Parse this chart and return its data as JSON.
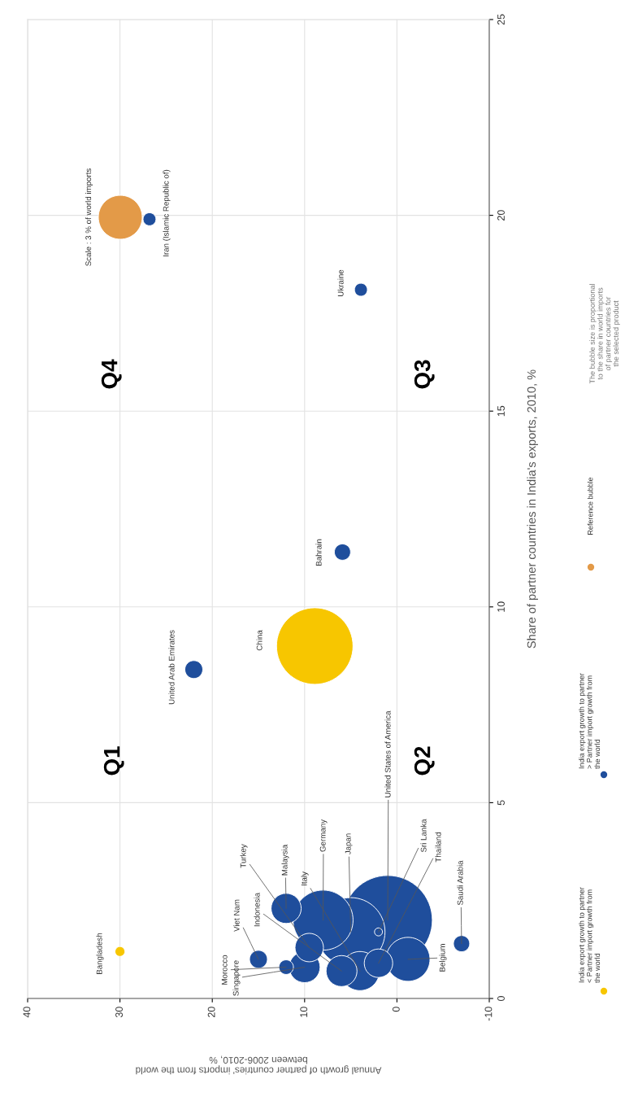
{
  "chart_data": {
    "type": "bubble",
    "xlabel": "Annual growth of partner countries' imports from the world\nbetween 2006-2010, %",
    "ylabel": "Share of partner countries in India's exports, 2010, %",
    "xlim": [
      40,
      -10
    ],
    "xticks": [
      40,
      30,
      20,
      10,
      0,
      -10
    ],
    "ylim": [
      0,
      25
    ],
    "yticks": [
      0,
      5,
      10,
      15,
      20,
      25
    ],
    "grid": true,
    "legend": "right",
    "marker": "circle",
    "size_legend": [
      {
        "value": 3,
        "label": "Scale : 3 % of world imports"
      }
    ],
    "series": [
      {
        "name": "India export growth to partner\n< Partner import growth from\nthe world",
        "color": "#f7c600",
        "x": [
          8.9,
          30
        ],
        "values": [
          9.0,
          1.2
        ],
        "sizes": [
          9.1,
          0.15
        ]
      },
      {
        "name": "India export growth to partner\n> Partner import growth from\nthe world",
        "color": "#1f4e9c",
        "x": [
          1.0,
          5.0,
          8.0,
          -1.2,
          4.0,
          6.0,
          10.0,
          12.0,
          9.5,
          2.0,
          22,
          15.0,
          5.9,
          -7.0,
          12.0,
          3.9,
          26.8,
          2.0
        ],
        "values": [
          2.0,
          1.7,
          2.0,
          1.0,
          0.7,
          0.7,
          0.8,
          2.3,
          1.3,
          0.9,
          8.4,
          1.0,
          11.4,
          1.4,
          0.8,
          18.1,
          19.9,
          1.7
        ],
        "sizes": [
          12.4,
          7.3,
          5.6,
          3.0,
          2.37,
          1.49,
          1.49,
          1.41,
          1.26,
          1.26,
          0.5,
          0.5,
          0.41,
          0.41,
          0.33,
          0.26,
          0.26,
          0.1
        ]
      }
    ],
    "annotations": [
      "Q1",
      "Q2",
      "Q3",
      "Q4",
      "The bubble size is proportional\nto the share in world imports\nof partner countries for\nthe selected product",
      "China",
      "Reference bubble",
      {
        "text": "Bangladesh",
        "x": 30,
        "y": 1.2
      },
      {
        "text": "United Arab Emirates",
        "x": 22,
        "y": 8.4
      },
      {
        "text": "Bahrain",
        "x": 5.9,
        "y": 11.4
      },
      {
        "text": "Ukraine",
        "x": 3.9,
        "y": 18.1
      },
      {
        "text": "Iran (Islamic Republic of)",
        "x": 26.8,
        "y": 19.9
      },
      {
        "text": "Morocco",
        "x": 12.0,
        "y": 0.8
      },
      {
        "text": "Singapore",
        "x": 10.0,
        "y": 0.8
      },
      {
        "text": "Viet Nam",
        "x": 15.0,
        "y": 1.0
      },
      {
        "text": "Turkey",
        "x": 9.5,
        "y": 1.3
      },
      {
        "text": "Indonesia",
        "x": 6.0,
        "y": 0.7
      },
      {
        "text": "Malaysia",
        "x": 12.0,
        "y": 2.3
      },
      {
        "text": "Italy",
        "x": 4.0,
        "y": 0.7
      },
      {
        "text": "Germany",
        "x": 8.0,
        "y": 2.0
      },
      {
        "text": "Japan",
        "x": 5.0,
        "y": 1.7
      },
      {
        "text": "United States of America",
        "x": 1.0,
        "y": 2.0
      },
      {
        "text": "Sri Lanka",
        "x": 2.0,
        "y": 1.7
      },
      {
        "text": "Thailand",
        "x": 2.0,
        "y": 0.9
      },
      {
        "text": "Saudi Arabia",
        "x": -7.0,
        "y": 1.4
      },
      {
        "text": "Belgium",
        "x": -1.2,
        "y": 1.0
      }
    ]
  }
}
